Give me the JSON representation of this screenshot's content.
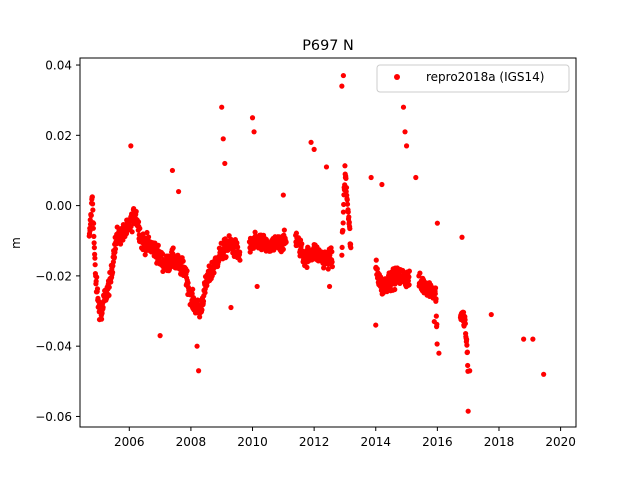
{
  "chart_data": {
    "type": "scatter",
    "title": "P697 N",
    "xlabel": "",
    "ylabel": "m",
    "xlim": [
      2004.4,
      2020.5
    ],
    "ylim": [
      -0.063,
      0.042
    ],
    "xticks": [
      2006,
      2008,
      2010,
      2012,
      2014,
      2016,
      2018,
      2020
    ],
    "yticks": [
      0.04,
      0.02,
      0.0,
      -0.02,
      -0.04,
      -0.06
    ],
    "ytick_labels": [
      "0.04",
      "0.02",
      "0.00",
      "−0.02",
      "−0.04",
      "−0.06"
    ],
    "grid": false,
    "legend_position": "top-right",
    "marker_color": "#ff0000",
    "series": [
      {
        "name": "repro2018a (IGS14)",
        "approximate_trend": [
          {
            "x": 2004.7,
            "y": -0.01
          },
          {
            "x": 2004.8,
            "y": 0.003
          },
          {
            "x": 2004.9,
            "y": -0.02
          },
          {
            "x": 2005.0,
            "y": -0.028
          },
          {
            "x": 2005.1,
            "y": -0.031
          },
          {
            "x": 2005.2,
            "y": -0.026
          },
          {
            "x": 2005.3,
            "y": -0.024
          },
          {
            "x": 2005.4,
            "y": -0.021
          },
          {
            "x": 2005.5,
            "y": -0.013
          },
          {
            "x": 2005.6,
            "y": -0.009
          },
          {
            "x": 2005.8,
            "y": -0.008
          },
          {
            "x": 2006.0,
            "y": -0.006
          },
          {
            "x": 2006.2,
            "y": -0.002
          },
          {
            "x": 2006.4,
            "y": -0.01
          },
          {
            "x": 2006.6,
            "y": -0.011
          },
          {
            "x": 2006.8,
            "y": -0.012
          },
          {
            "x": 2007.0,
            "y": -0.015
          },
          {
            "x": 2007.2,
            "y": -0.017
          },
          {
            "x": 2007.4,
            "y": -0.015
          },
          {
            "x": 2007.6,
            "y": -0.017
          },
          {
            "x": 2007.8,
            "y": -0.018
          },
          {
            "x": 2008.0,
            "y": -0.026
          },
          {
            "x": 2008.1,
            "y": -0.028
          },
          {
            "x": 2008.3,
            "y": -0.03
          },
          {
            "x": 2008.5,
            "y": -0.022
          },
          {
            "x": 2008.7,
            "y": -0.018
          },
          {
            "x": 2009.0,
            "y": -0.013
          },
          {
            "x": 2009.3,
            "y": -0.011
          },
          {
            "x": 2009.6,
            "y": -0.014
          },
          {
            "x": 2009.9,
            "y": -0.012
          },
          {
            "x": 2010.2,
            "y": -0.01
          },
          {
            "x": 2010.5,
            "y": -0.012
          },
          {
            "x": 2010.8,
            "y": -0.011
          },
          {
            "x": 2011.1,
            "y": -0.01
          },
          {
            "x": 2011.4,
            "y": -0.009
          },
          {
            "x": 2011.7,
            "y": -0.015
          },
          {
            "x": 2012.0,
            "y": -0.013
          },
          {
            "x": 2012.3,
            "y": -0.015
          },
          {
            "x": 2012.6,
            "y": -0.015
          },
          {
            "x": 2012.9,
            "y": -0.014
          },
          {
            "x": 2013.0,
            "y": 0.01
          },
          {
            "x": 2013.2,
            "y": -0.013
          },
          {
            "x": 2013.6,
            "y": -0.014
          },
          {
            "x": 2014.0,
            "y": -0.018
          },
          {
            "x": 2014.2,
            "y": -0.023
          },
          {
            "x": 2014.5,
            "y": -0.021
          },
          {
            "x": 2014.8,
            "y": -0.02
          },
          {
            "x": 2015.1,
            "y": -0.021
          },
          {
            "x": 2015.4,
            "y": -0.022
          },
          {
            "x": 2015.7,
            "y": -0.023
          },
          {
            "x": 2015.95,
            "y": -0.025
          },
          {
            "x": 2016.0,
            "y": -0.041
          },
          {
            "x": 2016.75,
            "y": -0.031
          },
          {
            "x": 2016.9,
            "y": -0.033
          },
          {
            "x": 2017.0,
            "y": -0.047
          },
          {
            "x": 2017.75,
            "y": -0.039
          },
          {
            "x": 2018.75,
            "y": -0.043
          },
          {
            "x": 2019.4,
            "y": -0.046
          }
        ],
        "outliers": [
          {
            "x": 2006.05,
            "y": 0.017
          },
          {
            "x": 2007.0,
            "y": -0.037
          },
          {
            "x": 2007.4,
            "y": 0.01
          },
          {
            "x": 2007.6,
            "y": 0.004
          },
          {
            "x": 2008.2,
            "y": -0.04
          },
          {
            "x": 2008.25,
            "y": -0.047
          },
          {
            "x": 2009.0,
            "y": 0.028
          },
          {
            "x": 2009.05,
            "y": 0.019
          },
          {
            "x": 2009.1,
            "y": 0.012
          },
          {
            "x": 2009.3,
            "y": -0.029
          },
          {
            "x": 2010.0,
            "y": 0.025
          },
          {
            "x": 2010.05,
            "y": 0.021
          },
          {
            "x": 2010.15,
            "y": -0.023
          },
          {
            "x": 2011.0,
            "y": 0.003
          },
          {
            "x": 2011.9,
            "y": 0.018
          },
          {
            "x": 2012.0,
            "y": 0.016
          },
          {
            "x": 2012.4,
            "y": 0.011
          },
          {
            "x": 2012.5,
            "y": -0.023
          },
          {
            "x": 2012.95,
            "y": 0.037
          },
          {
            "x": 2012.9,
            "y": 0.034
          },
          {
            "x": 2013.85,
            "y": 0.008
          },
          {
            "x": 2014.0,
            "y": -0.034
          },
          {
            "x": 2014.2,
            "y": 0.006
          },
          {
            "x": 2014.9,
            "y": 0.028
          },
          {
            "x": 2014.95,
            "y": 0.021
          },
          {
            "x": 2015.0,
            "y": 0.017
          },
          {
            "x": 2015.3,
            "y": 0.008
          },
          {
            "x": 2015.9,
            "y": -0.033
          },
          {
            "x": 2016.0,
            "y": -0.005
          },
          {
            "x": 2016.05,
            "y": -0.042
          },
          {
            "x": 2016.8,
            "y": -0.009
          },
          {
            "x": 2017.0,
            "y": -0.0585
          },
          {
            "x": 2017.05,
            "y": -0.047
          },
          {
            "x": 2017.75,
            "y": -0.031
          },
          {
            "x": 2018.8,
            "y": -0.038
          },
          {
            "x": 2019.1,
            "y": -0.038
          },
          {
            "x": 2019.45,
            "y": -0.048
          }
        ]
      }
    ]
  }
}
